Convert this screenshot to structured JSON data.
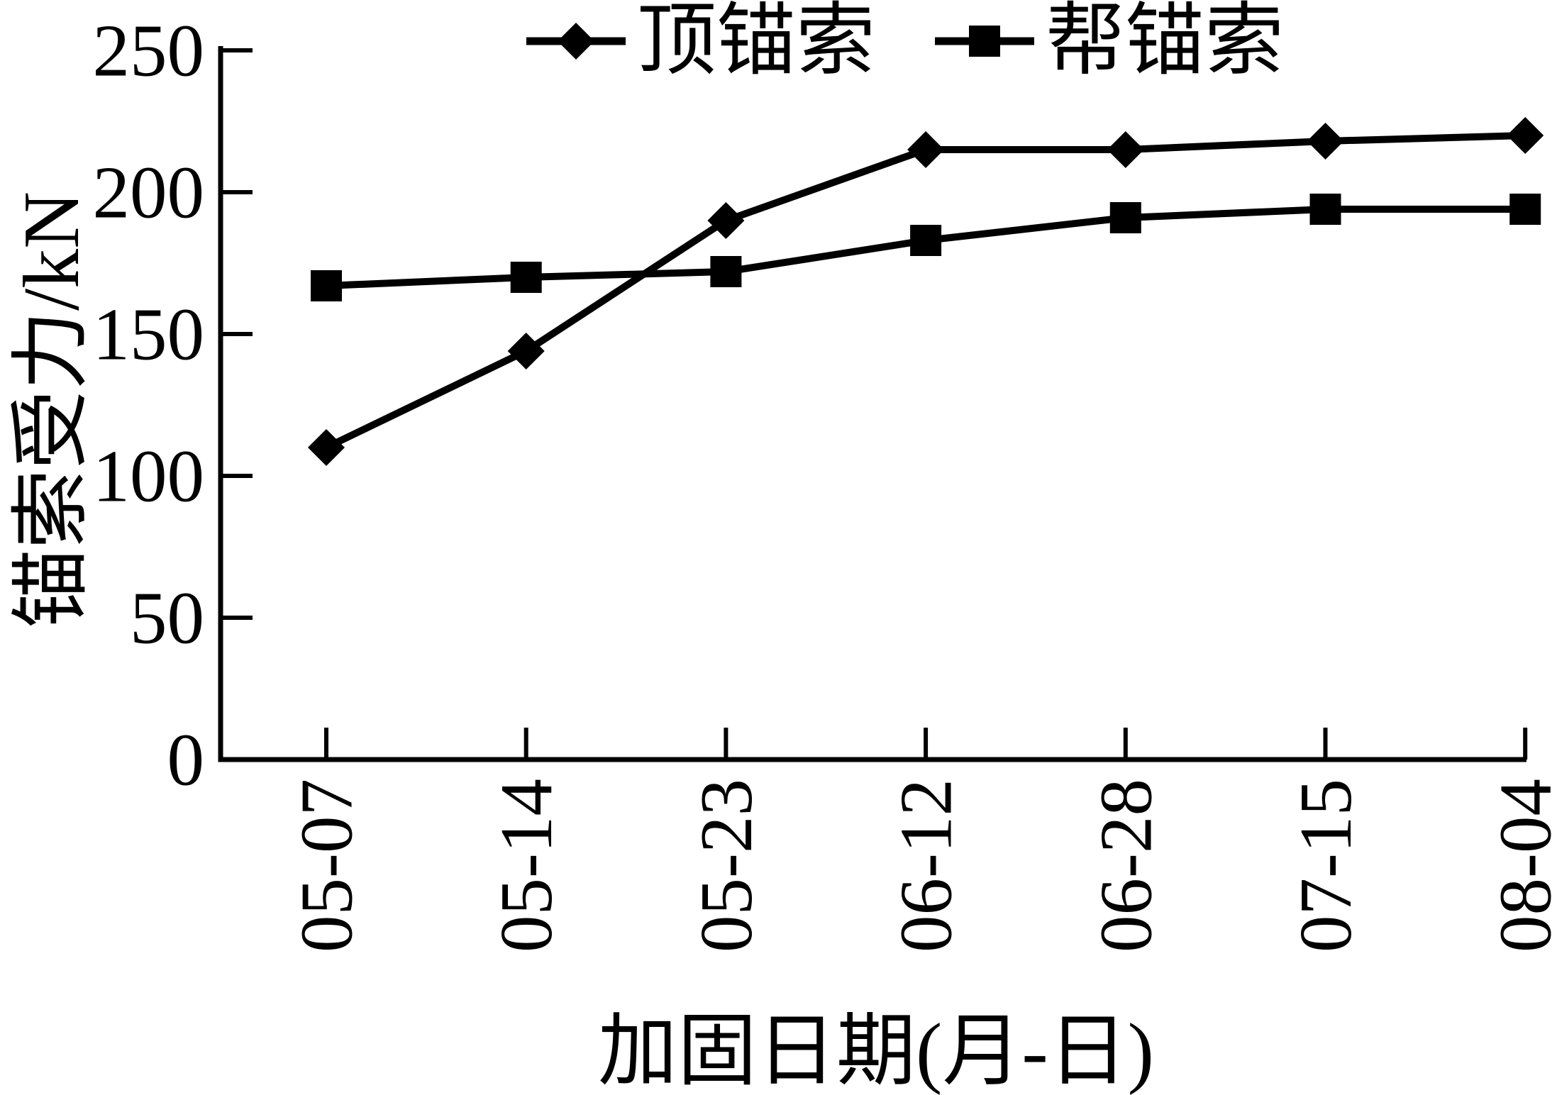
{
  "figure": {
    "background_color": "#ffffff",
    "foreground_color": "#000000"
  },
  "legend": {
    "position": "top",
    "items": [
      {
        "label": "顶锚索",
        "marker": "diamond"
      },
      {
        "label": "帮锚索",
        "marker": "square"
      }
    ]
  },
  "chart_data": {
    "type": "line",
    "title": "",
    "categories": [
      "05-07",
      "05-14",
      "05-23",
      "06-12",
      "06-28",
      "07-15",
      "08-04"
    ],
    "series": [
      {
        "name": "顶锚索",
        "marker": "diamond",
        "color": "#000000",
        "values": [
          110,
          144,
          190,
          215,
          215,
          218,
          220
        ]
      },
      {
        "name": "帮锚索",
        "marker": "square",
        "color": "#000000",
        "values": [
          167,
          170,
          172,
          183,
          191,
          194,
          194
        ]
      }
    ],
    "xlabel": "加固日期(月-日)",
    "ylabel": "锚索受力/kN",
    "ylim": [
      0,
      250
    ],
    "yticks": [
      0,
      50,
      100,
      150,
      200,
      250
    ],
    "x_tick_rotation": 90,
    "grid": false,
    "legend_position": "top center"
  }
}
